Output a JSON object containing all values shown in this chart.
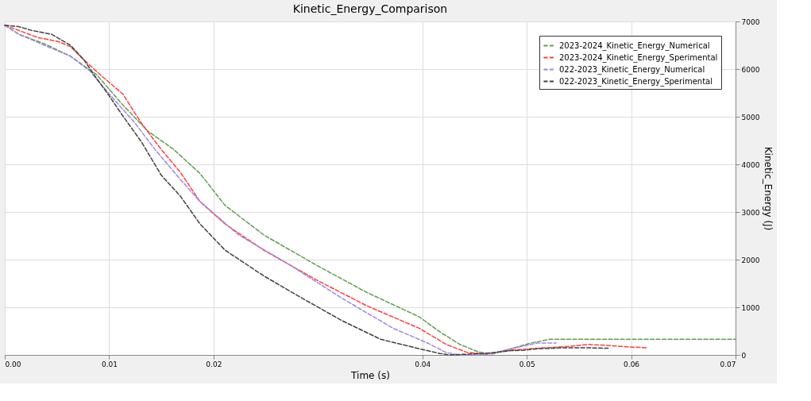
{
  "chart_data": {
    "type": "line",
    "title": "Kinetic_Energy_Comparison",
    "xlabel": "Time (s)",
    "ylabel": "Kinetic_Energy (J)",
    "xlim": [
      0,
      0.07
    ],
    "xticks": [
      {
        "value": 0,
        "label": "0.00"
      },
      0.01,
      0.02,
      0.04,
      0.05,
      0.06,
      0.07
    ],
    "ylim": [
      0,
      7000
    ],
    "yticks": [
      0,
      1000,
      2000,
      3000,
      4000,
      5000,
      6000,
      7000
    ],
    "grid": true,
    "legend": "top right",
    "line_style": "dashed",
    "marker": "none",
    "series": [
      {
        "name": "2023-2024_Kinetic_Energy_Numerical",
        "color": "#5f9e4f",
        "x": [
          0,
          0.00136,
          0.0038,
          0.0063,
          0.0088,
          0.0113,
          0.0137,
          0.0162,
          0.0187,
          0.0211,
          0.0248,
          0.0298,
          0.0347,
          0.0397,
          0.0417,
          0.0436,
          0.0454,
          0.0467,
          0.0485,
          0.0504,
          0.0522,
          0.0553,
          0.0646,
          0.07
        ],
        "values": [
          6920,
          6730,
          6530,
          6270,
          5880,
          5250,
          4700,
          4310,
          3810,
          3140,
          2520,
          1890,
          1310,
          800,
          480,
          220,
          60,
          20,
          130,
          250,
          330,
          330,
          330,
          330
        ]
      },
      {
        "name": "2023-2024_Kinetic_Energy_Sperimental",
        "color": "#ff4040",
        "x": [
          0,
          0.00136,
          0.0032,
          0.0051,
          0.0063,
          0.0076,
          0.0088,
          0.01,
          0.0113,
          0.0131,
          0.015,
          0.0168,
          0.0187,
          0.0211,
          0.0248,
          0.0298,
          0.0347,
          0.0397,
          0.0423,
          0.0442,
          0.046,
          0.0485,
          0.051,
          0.0535,
          0.0559,
          0.0578,
          0.0597,
          0.0615
        ],
        "values": [
          6920,
          6810,
          6660,
          6580,
          6470,
          6190,
          5950,
          5720,
          5480,
          4860,
          4310,
          3840,
          3220,
          2750,
          2200,
          1580,
          1030,
          560,
          220,
          60,
          20,
          100,
          140,
          170,
          220,
          200,
          170,
          150
        ]
      },
      {
        "name": "022-2023_Kinetic_Energy_Numerical",
        "color": "#9f86e0",
        "x": [
          0,
          0.00136,
          0.0038,
          0.0063,
          0.0082,
          0.01,
          0.0125,
          0.0144,
          0.0168,
          0.0187,
          0.0224,
          0.0273,
          0.0323,
          0.0372,
          0.0405,
          0.0423,
          0.0436,
          0.046,
          0.0485,
          0.051,
          0.0528
        ],
        "values": [
          6920,
          6730,
          6500,
          6270,
          5950,
          5480,
          4860,
          4310,
          3690,
          3220,
          2520,
          1890,
          1190,
          560,
          250,
          50,
          0,
          0,
          130,
          250,
          250
        ]
      },
      {
        "name": "022-2023_Kinetic_Energy_Sperimental",
        "color": "#404040",
        "x": [
          0,
          0.00136,
          0.0026,
          0.0045,
          0.0063,
          0.0076,
          0.0088,
          0.01,
          0.0113,
          0.0131,
          0.015,
          0.0168,
          0.0187,
          0.0211,
          0.0248,
          0.0285,
          0.0323,
          0.036,
          0.0397,
          0.0417,
          0.0426,
          0.046,
          0.0485,
          0.0498,
          0.051,
          0.0535,
          0.0559,
          0.0578
        ],
        "values": [
          6920,
          6890,
          6810,
          6730,
          6500,
          6190,
          5800,
          5440,
          5020,
          4470,
          3770,
          3340,
          2750,
          2200,
          1660,
          1190,
          720,
          330,
          130,
          30,
          0,
          30,
          90,
          100,
          130,
          150,
          150,
          140
        ]
      }
    ]
  }
}
